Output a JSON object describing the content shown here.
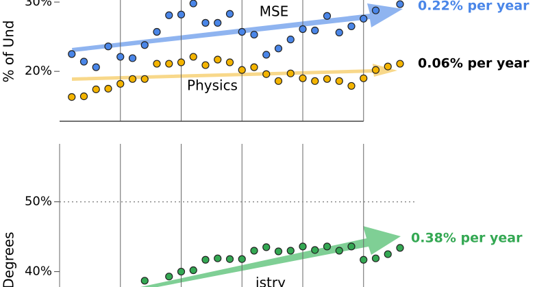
{
  "chart_data": [
    {
      "type": "scatter",
      "ylabel": "% of Und",
      "categories": [
        null,
        null,
        null,
        null,
        null,
        null,
        null,
        null,
        null,
        null,
        null,
        null,
        null,
        null,
        null,
        null,
        null,
        null,
        null,
        null,
        null,
        null,
        null,
        null,
        null,
        null,
        null,
        null,
        null
      ],
      "series": [
        {
          "name": "MSE",
          "color": "#4a86e8",
          "values": [
            null,
            22.5,
            21.4,
            20.6,
            23.6,
            22.1,
            21.9,
            23.8,
            25.7,
            28.1,
            28.2,
            29.8,
            27.0,
            27.0,
            28.3,
            25.7,
            25.3,
            22.4,
            23.3,
            24.6,
            26.1,
            25.9,
            28.0,
            25.6,
            26.5,
            27.6,
            28.8,
            null,
            29.7
          ]
        },
        {
          "name": "Physics",
          "color": "#f4b400",
          "values": [
            null,
            16.3,
            16.4,
            17.4,
            17.5,
            18.2,
            18.9,
            18.9,
            21.1,
            21.1,
            21.3,
            22.1,
            20.9,
            21.7,
            21.3,
            20.2,
            20.6,
            19.6,
            18.6,
            19.7,
            19.0,
            18.6,
            18.9,
            18.6,
            17.9,
            19.0,
            20.2,
            20.7,
            21.1
          ]
        }
      ],
      "annotations": [
        {
          "text": "0.22% per year",
          "color": "#4a86e8"
        },
        {
          "text": "0.06% per year",
          "color": "#000000"
        }
      ],
      "ylim": [
        12.8,
        30.3
      ],
      "yticks": [
        {
          "value": 30,
          "label": "30%"
        },
        {
          "value": 20,
          "label": "20%"
        }
      ]
    },
    {
      "type": "scatter",
      "ylabel": "Degrees",
      "categories": [
        null,
        null,
        null,
        null,
        null,
        null,
        null,
        null,
        null,
        null,
        null,
        null,
        null,
        null,
        null,
        null,
        null,
        null,
        null,
        null,
        null,
        null,
        null,
        null,
        null,
        null,
        null,
        null,
        null
      ],
      "series": [
        {
          "name": "istry",
          "color": "#34a853",
          "values": [
            null,
            null,
            null,
            null,
            null,
            null,
            null,
            38.7,
            null,
            39.3,
            40.0,
            40.2,
            41.7,
            41.9,
            41.8,
            41.8,
            43.0,
            43.5,
            42.9,
            43.0,
            43.6,
            43.1,
            43.6,
            43.0,
            43.6,
            41.7,
            41.9,
            42.5,
            43.4
          ]
        }
      ],
      "annotations": [
        {
          "text": "0.38% per year",
          "color": "#34a853"
        }
      ],
      "ylim": [
        37.8,
        58.3
      ],
      "yticks": [
        {
          "value": 50,
          "label": "50%"
        },
        {
          "value": 40,
          "label": "40%"
        }
      ]
    }
  ]
}
